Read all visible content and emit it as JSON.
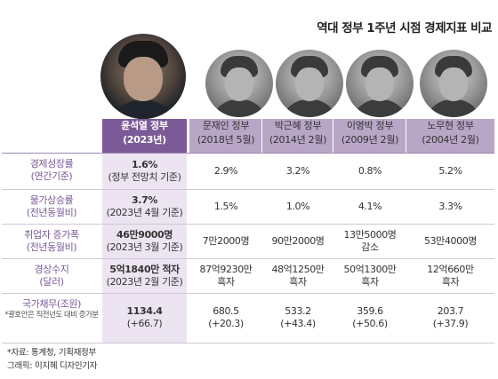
{
  "title": "역대 정부 1주년 시점 경제지표 비교",
  "chart_data": {
    "type": "table",
    "title": "역대 정부 1주년 시점 경제지표 비교",
    "columns": [
      {
        "name": "윤석열 정부",
        "date": "(2023년)",
        "current": true
      },
      {
        "name": "문재인 정부",
        "date": "(2018년 5월)"
      },
      {
        "name": "박근혜 정부",
        "date": "(2014년 2월)"
      },
      {
        "name": "이명박 정부",
        "date": "(2009년 2월)"
      },
      {
        "name": "노무현 정부",
        "date": "(2004년 2월)"
      }
    ],
    "rows": [
      {
        "label": "경제성장률",
        "sublabel": "(연간기준)",
        "cells": [
          [
            "1.6%",
            "(정부 전망치 기준)"
          ],
          [
            "2.9%"
          ],
          [
            "3.2%"
          ],
          [
            "0.8%"
          ],
          [
            "5.2%"
          ]
        ]
      },
      {
        "label": "물가상승률",
        "sublabel": "(전년동월비)",
        "cells": [
          [
            "3.7%",
            "(2023년 4월 기준)"
          ],
          [
            "1.5%"
          ],
          [
            "1.0%"
          ],
          [
            "4.1%"
          ],
          [
            "3.3%"
          ]
        ]
      },
      {
        "label": "취업자 증가폭",
        "sublabel": "(전년동월비)",
        "cells": [
          [
            "46만9000명",
            "(2023년 3월 기준)"
          ],
          [
            "7만2000명"
          ],
          [
            "90만2000명"
          ],
          [
            "13만5000명",
            "감소"
          ],
          [
            "53만4000명"
          ]
        ]
      },
      {
        "label": "경상수지",
        "sublabel": "(달러)",
        "cells": [
          [
            "5억1840만 적자",
            "(2023년 2월 기준)"
          ],
          [
            "87억9230만",
            "흑자"
          ],
          [
            "48억1250만",
            "흑자"
          ],
          [
            "50억1300만",
            "흑자"
          ],
          [
            "12억660만",
            "흑자"
          ]
        ]
      },
      {
        "label": "국가채무(조원)",
        "note": "*괄호안은 직전년도 대비 증가분",
        "cells": [
          [
            "1134.4",
            "(+66.7)"
          ],
          [
            "680.5",
            "(+20.3)"
          ],
          [
            "533.2",
            "(+43.4)"
          ],
          [
            "359.6",
            "(+50.6)"
          ],
          [
            "203.7",
            "(+37.9)"
          ]
        ]
      }
    ]
  },
  "source": "*자료: 통계청, 기획재정부",
  "credit": "그래픽: 이지혜 디자인기자",
  "colors": {
    "accent": "#7b5a97",
    "header_band": "#b9a6c7",
    "current_column": "#ece5f1"
  },
  "icons": [
    "portrait-yoon",
    "portrait-moon",
    "portrait-park",
    "portrait-lee",
    "portrait-roh"
  ]
}
